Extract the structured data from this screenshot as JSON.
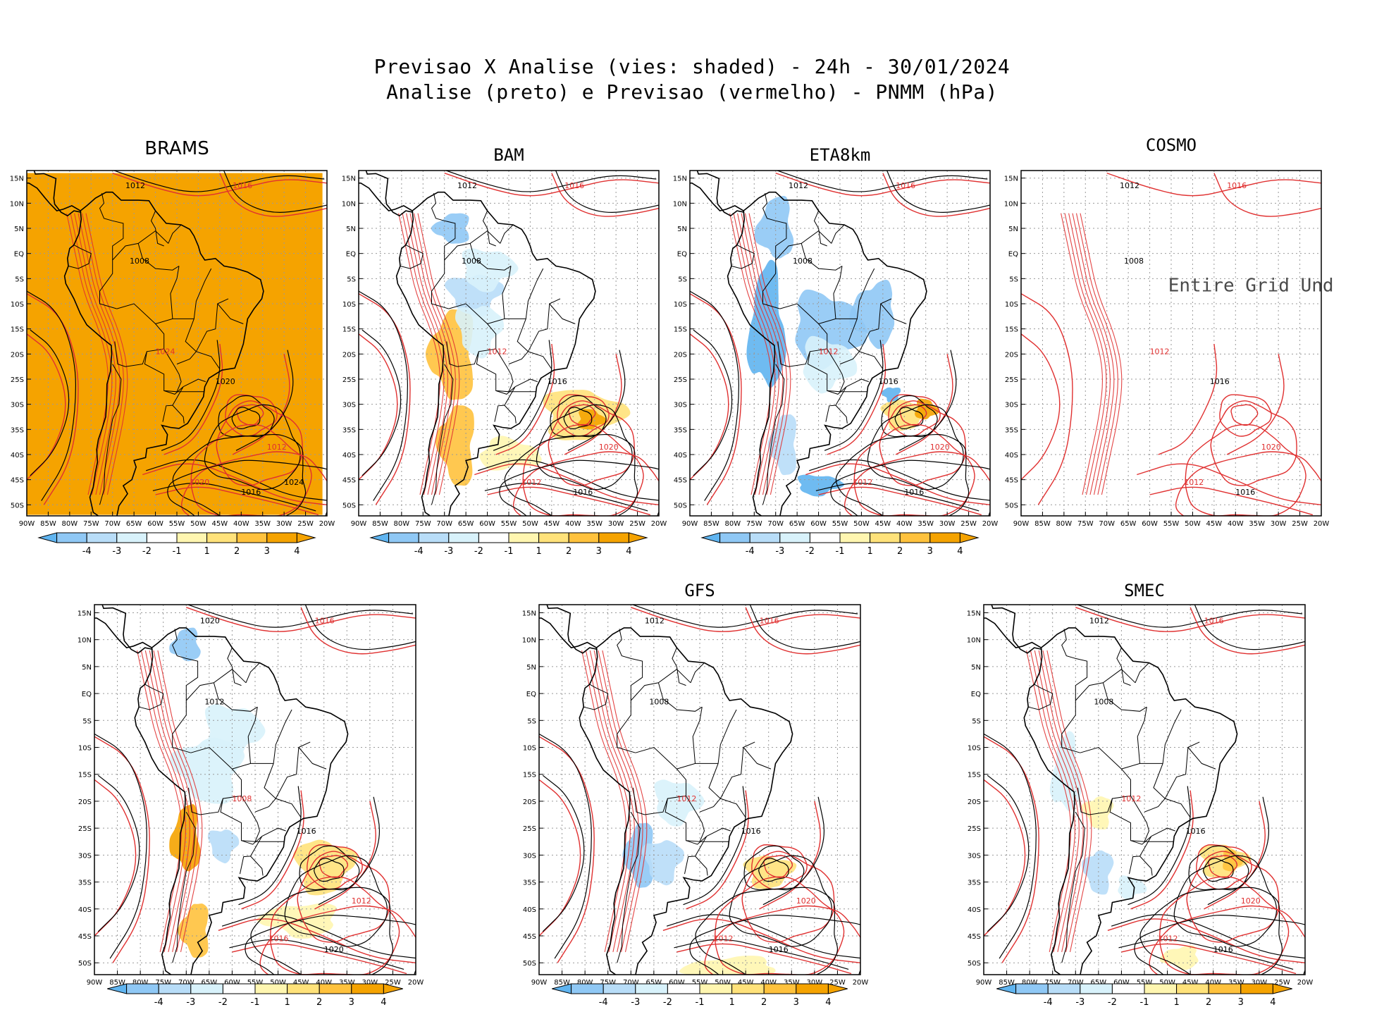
{
  "header": {
    "line1": "Previsao X Analise (vies: shaded) - 24h - 30/01/2024",
    "line2": "Analise (preto) e Previsao (vermelho) - PNMM (hPa)"
  },
  "axes": {
    "lat_labels": [
      "15N",
      "10N",
      "5N",
      "EQ",
      "5S",
      "10S",
      "15S",
      "20S",
      "25S",
      "30S",
      "35S",
      "40S",
      "45S",
      "50S"
    ],
    "lon_labels": [
      "90W",
      "85W",
      "80W",
      "75W",
      "70W",
      "65W",
      "60W",
      "55W",
      "50W",
      "45W",
      "40W",
      "35W",
      "30W",
      "25W",
      "20W"
    ]
  },
  "colorbar": {
    "ticks": [
      "-4",
      "-3",
      "-2",
      "-1",
      "1",
      "2",
      "3",
      "4"
    ],
    "colors": [
      "#5fb4f0",
      "#8fc8f5",
      "#b8ddf8",
      "#d8f2fb",
      "#ffffff",
      "#fff6b0",
      "#ffe27a",
      "#ffc23d",
      "#f5a300"
    ]
  },
  "colors": {
    "analysis": "#000000",
    "forecast": "#e03030",
    "bias_positive": "#f7a400",
    "bias_negative": "#6bbaf0"
  },
  "panels": [
    {
      "name": "BRAMS",
      "labels": [
        "1012",
        "1016",
        "1008",
        "1024",
        "1020",
        "1012",
        "1016",
        "1020",
        "1024"
      ],
      "note": ""
    },
    {
      "name": "BAM",
      "labels": [
        "1012",
        "1016",
        "1008",
        "1012",
        "1016",
        "1020",
        "1016",
        "1012"
      ],
      "note": ""
    },
    {
      "name": "ETA8km",
      "labels": [
        "1012",
        "1016",
        "1008",
        "1012",
        "1016",
        "1020",
        "1016",
        "1012"
      ],
      "note": ""
    },
    {
      "name": "COSMO",
      "labels": [
        "1012",
        "1016",
        "1008",
        "1012",
        "1016",
        "1020",
        "1016",
        "1012"
      ],
      "note": "Entire Grid Und"
    },
    {
      "name": "",
      "labels": [
        "1020",
        "1016",
        "1012",
        "1008",
        "1016",
        "1012",
        "1020",
        "1016"
      ],
      "note": ""
    },
    {
      "name": "GFS",
      "labels": [
        "1012",
        "1016",
        "1008",
        "1012",
        "1016",
        "1020",
        "1016",
        "1012"
      ],
      "note": ""
    },
    {
      "name": "SMEC",
      "labels": [
        "1012",
        "1016",
        "1008",
        "1012",
        "1016",
        "1020",
        "1016",
        "1012"
      ],
      "note": ""
    }
  ]
}
